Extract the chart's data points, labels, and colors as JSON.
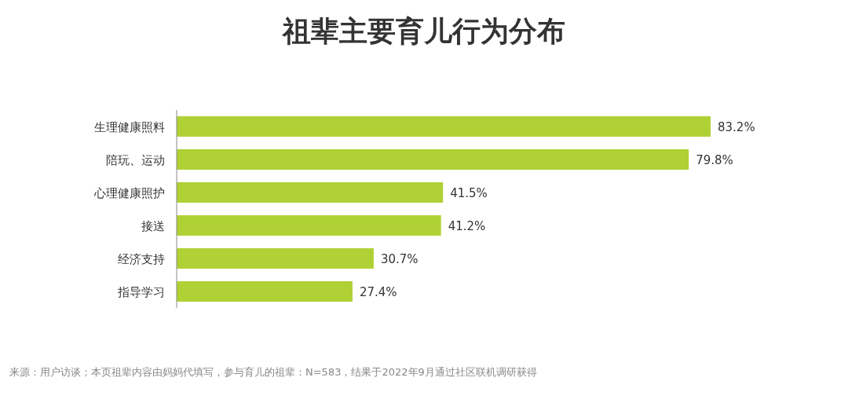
{
  "chart_data": {
    "type": "bar",
    "orientation": "horizontal",
    "title": "祖辈主要育儿行为分布",
    "categories": [
      "生理健康照料",
      "陪玩、运动",
      "心理健康照护",
      "接送",
      "经济支持",
      "指导学习"
    ],
    "values": [
      83.2,
      79.8,
      41.5,
      41.2,
      30.7,
      27.4
    ],
    "value_labels": [
      "83.2%",
      "79.8%",
      "41.5%",
      "41.2%",
      "30.7%",
      "27.4%"
    ],
    "color": "#afd135",
    "annotations": [
      "来源：用户访谈；本页祖辈内容由妈妈代填写，参与育儿的祖辈：N=583，结果于2022年9月通过社区联机调研获得"
    ]
  }
}
